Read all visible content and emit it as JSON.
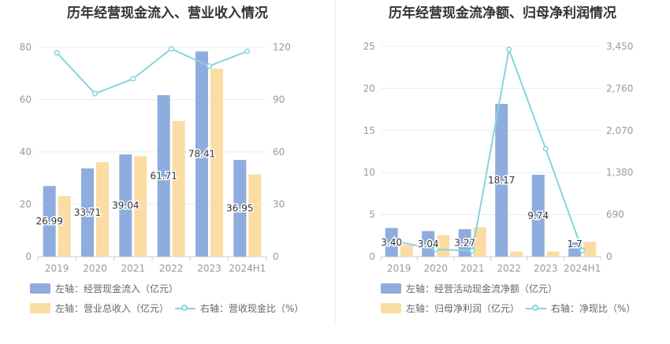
{
  "colors": {
    "bar_primary": "#8eadde",
    "bar_secondary": "#fbdca3",
    "line": "#85d5dc",
    "axis_text": "#999999",
    "grid": "#e8ecf3"
  },
  "legend_icons": {
    "bar": "bar-swatch",
    "line": "line-circle-marker"
  },
  "chart_data": [
    {
      "type": "bar",
      "title": "历年经营现金流入、营业收入情况",
      "categories": [
        "2019",
        "2020",
        "2021",
        "2022",
        "2023",
        "2024H1"
      ],
      "left_axis": {
        "min": 0,
        "max": 80,
        "ticks": [
          "0",
          "20",
          "40",
          "60",
          "80"
        ]
      },
      "right_axis": {
        "min": 0,
        "max": 120,
        "ticks": [
          "0",
          "30",
          "60",
          "90",
          "120"
        ]
      },
      "grid": true,
      "legend_position": "bottom-left",
      "series": [
        {
          "name": "左轴：经营现金流入（亿元）",
          "kind": "bar",
          "axis": "left",
          "values": [
            26.99,
            33.71,
            39.04,
            61.71,
            78.41,
            36.95
          ],
          "labels": [
            "26.99",
            "33.71",
            "39.04",
            "61.71",
            "78.41",
            "36.95"
          ]
        },
        {
          "name": "左轴：营业总收入（亿元）",
          "kind": "bar",
          "axis": "left",
          "values": [
            23.1,
            36.1,
            38.3,
            51.8,
            71.8,
            31.4
          ]
        },
        {
          "name": "右轴：营收现金比（%）",
          "kind": "line",
          "axis": "right",
          "values": [
            116.8,
            93.4,
            101.9,
            119.1,
            109.2,
            117.7
          ]
        }
      ]
    },
    {
      "type": "bar",
      "title": "历年经营现金流净额、归母净利润情况",
      "categories": [
        "2019",
        "2020",
        "2021",
        "2022",
        "2023",
        "2024H1"
      ],
      "left_axis": {
        "min": 0,
        "max": 25,
        "ticks": [
          "0",
          "5",
          "10",
          "15",
          "20",
          "25"
        ]
      },
      "right_axis": {
        "min": 0,
        "max": 3450,
        "ticks": [
          "0",
          "690",
          "1,380",
          "2,070",
          "2,760",
          "3,450"
        ]
      },
      "grid": true,
      "legend_position": "bottom-left",
      "series": [
        {
          "name": "左轴：经营活动现金流净额（亿元）",
          "kind": "bar",
          "axis": "left",
          "values": [
            3.4,
            3.04,
            3.27,
            18.17,
            9.74,
            1.7
          ],
          "labels": [
            "3.40",
            "3.04",
            "3.27",
            "18.17",
            "9.74",
            "1.7"
          ]
        },
        {
          "name": "左轴：归母净利润（亿元）",
          "kind": "bar",
          "axis": "left",
          "values": [
            1.4,
            2.55,
            3.5,
            0.6,
            0.6,
            1.75
          ]
        },
        {
          "name": "右轴：净现比（%）",
          "kind": "line",
          "axis": "right",
          "values": [
            240,
            120,
            95,
            3400,
            1770,
            100
          ]
        }
      ]
    }
  ]
}
